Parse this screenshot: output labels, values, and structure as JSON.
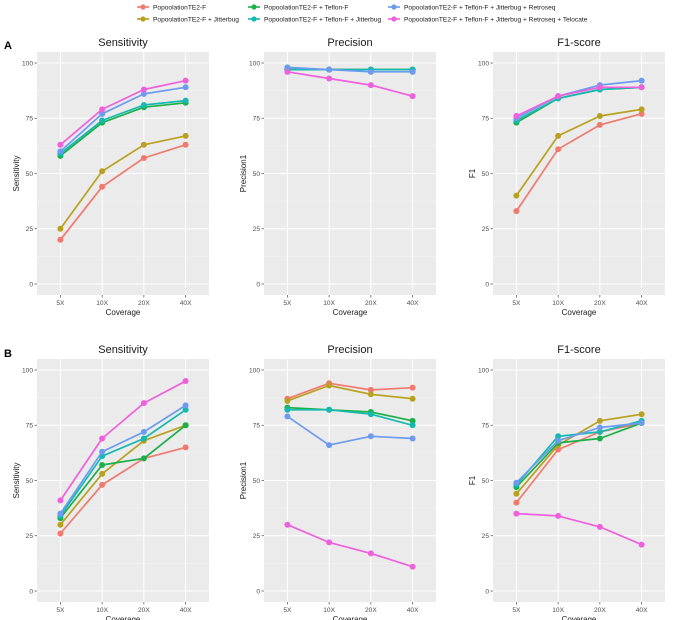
{
  "legend": [
    {
      "name": "PopoolationTE2-F",
      "color": "#F07A6E"
    },
    {
      "name": "PopoolationTE2-F + Jitterbug",
      "color": "#B8A11F"
    },
    {
      "name": "PopoolationTE2-F + Teflon-F",
      "color": "#1DAF4A"
    },
    {
      "name": "PopoolationTE2-F + Teflon-F + Jitterbug",
      "color": "#14B9B0"
    },
    {
      "name": "PopoolationTE2-F + Teflon-F + Jitterbug + Retroseq",
      "color": "#6C9BF0"
    },
    {
      "name": "PopoolationTE2-F + Teflon-F + Jitterbug + Retroseq + Telocate",
      "color": "#F05FDC"
    }
  ],
  "panels": [
    {
      "label": "A"
    },
    {
      "label": "B"
    }
  ],
  "chart_data": [
    {
      "type": "line",
      "panel": "A",
      "title": "Sensitivity",
      "xlabel": "Coverage",
      "ylabel": "Sensitivity",
      "categories": [
        "5X",
        "10X",
        "20X",
        "40X"
      ],
      "ylim": [
        0,
        100
      ],
      "yticks": [
        0,
        25,
        50,
        75,
        100
      ],
      "series": [
        {
          "name": "PopoolationTE2-F",
          "values": [
            20,
            44,
            57,
            63
          ]
        },
        {
          "name": "PopoolationTE2-F + Jitterbug",
          "values": [
            25,
            51,
            63,
            67
          ]
        },
        {
          "name": "PopoolationTE2-F + Teflon-F",
          "values": [
            58,
            73,
            80,
            82
          ]
        },
        {
          "name": "PopoolationTE2-F + Teflon-F + Jitterbug",
          "values": [
            59,
            74,
            81,
            83
          ]
        },
        {
          "name": "PopoolationTE2-F + Teflon-F + Jitterbug + Retroseq",
          "values": [
            60,
            77,
            86,
            89
          ]
        },
        {
          "name": "PopoolationTE2-F + Teflon-F + Jitterbug + Retroseq + Telocate",
          "values": [
            63,
            79,
            88,
            92
          ]
        }
      ]
    },
    {
      "type": "line",
      "panel": "A",
      "title": "Precision",
      "xlabel": "Coverage",
      "ylabel": "Precision1",
      "categories": [
        "5X",
        "10X",
        "20X",
        "40X"
      ],
      "ylim": [
        0,
        100
      ],
      "yticks": [
        0,
        25,
        50,
        75,
        100
      ],
      "series": [
        {
          "name": "PopoolationTE2-F",
          "values": [
            97,
            97,
            97,
            97
          ]
        },
        {
          "name": "PopoolationTE2-F + Jitterbug",
          "values": [
            97,
            97,
            97,
            97
          ]
        },
        {
          "name": "PopoolationTE2-F + Teflon-F",
          "values": [
            97,
            97,
            97,
            97
          ]
        },
        {
          "name": "PopoolationTE2-F + Teflon-F + Jitterbug",
          "values": [
            97,
            97,
            97,
            97
          ]
        },
        {
          "name": "PopoolationTE2-F + Teflon-F + Jitterbug + Retroseq",
          "values": [
            98,
            97,
            96,
            96
          ]
        },
        {
          "name": "PopoolationTE2-F + Teflon-F + Jitterbug + Retroseq + Telocate",
          "values": [
            96,
            93,
            90,
            85
          ]
        }
      ]
    },
    {
      "type": "line",
      "panel": "A",
      "title": "F1-score",
      "xlabel": "Coverage",
      "ylabel": "F1",
      "categories": [
        "5X",
        "10X",
        "20X",
        "40X"
      ],
      "ylim": [
        0,
        100
      ],
      "yticks": [
        0,
        25,
        50,
        75,
        100
      ],
      "series": [
        {
          "name": "PopoolationTE2-F",
          "values": [
            33,
            61,
            72,
            77
          ]
        },
        {
          "name": "PopoolationTE2-F + Jitterbug",
          "values": [
            40,
            67,
            76,
            79
          ]
        },
        {
          "name": "PopoolationTE2-F + Teflon-F",
          "values": [
            73,
            84,
            88,
            89
          ]
        },
        {
          "name": "PopoolationTE2-F + Teflon-F + Jitterbug",
          "values": [
            74,
            84,
            88,
            89
          ]
        },
        {
          "name": "PopoolationTE2-F + Teflon-F + Jitterbug + Retroseq",
          "values": [
            75,
            85,
            90,
            92
          ]
        },
        {
          "name": "PopoolationTE2-F + Teflon-F + Jitterbug + Retroseq + Telocate",
          "values": [
            76,
            85,
            89,
            89
          ]
        }
      ]
    },
    {
      "type": "line",
      "panel": "B",
      "title": "Sensitivity",
      "xlabel": "Coverage",
      "ylabel": "Sensitivity",
      "categories": [
        "5X",
        "10X",
        "20X",
        "40X"
      ],
      "ylim": [
        0,
        100
      ],
      "yticks": [
        0,
        25,
        50,
        75,
        100
      ],
      "series": [
        {
          "name": "PopoolationTE2-F",
          "values": [
            26,
            48,
            60,
            65
          ]
        },
        {
          "name": "PopoolationTE2-F + Jitterbug",
          "values": [
            30,
            53,
            68,
            75
          ]
        },
        {
          "name": "PopoolationTE2-F + Teflon-F",
          "values": [
            33,
            57,
            60,
            75
          ]
        },
        {
          "name": "PopoolationTE2-F + Teflon-F + Jitterbug",
          "values": [
            34,
            61,
            69,
            82
          ]
        },
        {
          "name": "PopoolationTE2-F + Teflon-F + Jitterbug + Retroseq",
          "values": [
            35,
            63,
            72,
            84
          ]
        },
        {
          "name": "PopoolationTE2-F + Teflon-F + Jitterbug + Retroseq + Telocate",
          "values": [
            41,
            69,
            85,
            95
          ]
        }
      ]
    },
    {
      "type": "line",
      "panel": "B",
      "title": "Precision",
      "xlabel": "Coverage",
      "ylabel": "Precision1",
      "categories": [
        "5X",
        "10X",
        "20X",
        "40X"
      ],
      "ylim": [
        0,
        100
      ],
      "yticks": [
        0,
        25,
        50,
        75,
        100
      ],
      "series": [
        {
          "name": "PopoolationTE2-F",
          "values": [
            87,
            94,
            91,
            92
          ]
        },
        {
          "name": "PopoolationTE2-F + Jitterbug",
          "values": [
            86,
            93,
            89,
            87
          ]
        },
        {
          "name": "PopoolationTE2-F + Teflon-F",
          "values": [
            83,
            82,
            81,
            77
          ]
        },
        {
          "name": "PopoolationTE2-F + Teflon-F + Jitterbug",
          "values": [
            82,
            82,
            80,
            75
          ]
        },
        {
          "name": "PopoolationTE2-F + Teflon-F + Jitterbug + Retroseq",
          "values": [
            79,
            66,
            70,
            69
          ]
        },
        {
          "name": "PopoolationTE2-F + Teflon-F + Jitterbug + Retroseq + Telocate",
          "values": [
            30,
            22,
            17,
            11
          ]
        }
      ]
    },
    {
      "type": "line",
      "panel": "B",
      "title": "F1-score",
      "xlabel": "Coverage",
      "ylabel": "F1",
      "categories": [
        "5X",
        "10X",
        "20X",
        "40X"
      ],
      "ylim": [
        0,
        100
      ],
      "yticks": [
        0,
        25,
        50,
        75,
        100
      ],
      "series": [
        {
          "name": "PopoolationTE2-F",
          "values": [
            40,
            64,
            72,
            76
          ]
        },
        {
          "name": "PopoolationTE2-F + Jitterbug",
          "values": [
            44,
            66,
            77,
            80
          ]
        },
        {
          "name": "PopoolationTE2-F + Teflon-F",
          "values": [
            47,
            67,
            69,
            76
          ]
        },
        {
          "name": "PopoolationTE2-F + Teflon-F + Jitterbug",
          "values": [
            48,
            70,
            72,
            77
          ]
        },
        {
          "name": "PopoolationTE2-F + Teflon-F + Jitterbug + Retroseq",
          "values": [
            49,
            68,
            74,
            76
          ]
        },
        {
          "name": "PopoolationTE2-F + Teflon-F + Jitterbug + Retroseq + Telocate",
          "values": [
            35,
            34,
            29,
            21
          ]
        }
      ]
    }
  ]
}
